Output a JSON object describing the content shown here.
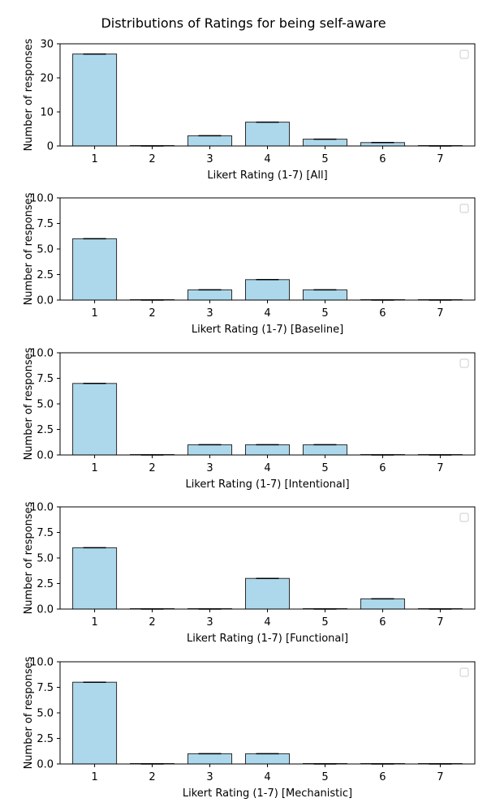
{
  "figure": {
    "title": "Distributions of Ratings for being self-aware"
  },
  "colors": {
    "bar_fill": "#add8ec",
    "bar_edge": "#2b2b2b",
    "errorbar": "#000000",
    "axes": "#000000",
    "legend_box": "#cccccc"
  },
  "chart_data": [
    {
      "type": "bar",
      "categories": [
        "1",
        "2",
        "3",
        "4",
        "5",
        "6",
        "7"
      ],
      "values": [
        27,
        0,
        3,
        7,
        2,
        1,
        0
      ],
      "xlabel": "Likert Rating (1-7) [All]",
      "ylabel": "Number of responses",
      "ylim": [
        0,
        30
      ],
      "yticks": [
        "0",
        "10",
        "20",
        "30"
      ],
      "legend": "top-right (empty)"
    },
    {
      "type": "bar",
      "categories": [
        "1",
        "2",
        "3",
        "4",
        "5",
        "6",
        "7"
      ],
      "values": [
        6,
        0,
        1,
        2,
        1,
        0,
        0
      ],
      "xlabel": "Likert Rating (1-7) [Baseline]",
      "ylabel": "Number of responses",
      "ylim": [
        0,
        10
      ],
      "yticks": [
        "0.0",
        "2.5",
        "5.0",
        "7.5",
        "10.0"
      ],
      "legend": "top-right (empty)"
    },
    {
      "type": "bar",
      "categories": [
        "1",
        "2",
        "3",
        "4",
        "5",
        "6",
        "7"
      ],
      "values": [
        7,
        0,
        1,
        1,
        1,
        0,
        0
      ],
      "xlabel": "Likert Rating (1-7) [Intentional]",
      "ylabel": "Number of responses",
      "ylim": [
        0,
        10
      ],
      "yticks": [
        "0.0",
        "2.5",
        "5.0",
        "7.5",
        "10.0"
      ],
      "legend": "top-right (empty)"
    },
    {
      "type": "bar",
      "categories": [
        "1",
        "2",
        "3",
        "4",
        "5",
        "6",
        "7"
      ],
      "values": [
        6,
        0,
        0,
        3,
        0,
        1,
        0
      ],
      "xlabel": "Likert Rating (1-7) [Functional]",
      "ylabel": "Number of responses",
      "ylim": [
        0,
        10
      ],
      "yticks": [
        "0.0",
        "2.5",
        "5.0",
        "7.5",
        "10.0"
      ],
      "legend": "top-right (empty)"
    },
    {
      "type": "bar",
      "categories": [
        "1",
        "2",
        "3",
        "4",
        "5",
        "6",
        "7"
      ],
      "values": [
        8,
        0,
        1,
        1,
        0,
        0,
        0
      ],
      "xlabel": "Likert Rating (1-7) [Mechanistic]",
      "ylabel": "Number of responses",
      "ylim": [
        0,
        10
      ],
      "yticks": [
        "0.0",
        "2.5",
        "5.0",
        "7.5",
        "10.0"
      ],
      "legend": "top-right (empty)"
    }
  ]
}
